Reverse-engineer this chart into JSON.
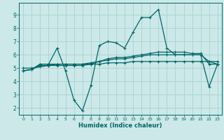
{
  "xlabel": "Humidex (Indice chaleur)",
  "bg_color": "#cce8e8",
  "grid_color": "#aed4d4",
  "line_color": "#006666",
  "xlim": [
    -0.5,
    23.5
  ],
  "ylim": [
    1.5,
    9.9
  ],
  "xticks": [
    0,
    1,
    2,
    3,
    4,
    5,
    6,
    7,
    8,
    9,
    10,
    11,
    12,
    13,
    14,
    15,
    16,
    17,
    18,
    19,
    20,
    21,
    22,
    23
  ],
  "yticks": [
    2,
    3,
    4,
    5,
    6,
    7,
    8,
    9
  ],
  "line1_x": [
    0,
    1,
    2,
    3,
    4,
    5,
    6,
    7,
    8,
    9,
    10,
    11,
    12,
    13,
    14,
    15,
    16,
    17,
    18,
    19,
    20,
    21,
    22,
    23
  ],
  "line1_y": [
    4.8,
    4.9,
    5.3,
    5.3,
    6.5,
    4.8,
    2.6,
    1.8,
    3.7,
    6.7,
    7.0,
    6.9,
    6.5,
    7.7,
    8.8,
    8.8,
    9.4,
    6.5,
    6.0,
    6.0,
    6.0,
    6.0,
    3.6,
    5.3
  ],
  "line2_x": [
    0,
    1,
    2,
    3,
    4,
    5,
    6,
    7,
    8,
    9,
    10,
    11,
    12,
    13,
    14,
    15,
    16,
    17,
    18,
    19,
    20,
    21,
    22,
    23
  ],
  "line2_y": [
    4.8,
    4.9,
    5.3,
    5.3,
    5.3,
    5.3,
    5.3,
    5.3,
    5.3,
    5.5,
    5.7,
    5.8,
    5.8,
    5.9,
    6.0,
    6.1,
    6.2,
    6.2,
    6.2,
    6.2,
    6.1,
    6.1,
    5.3,
    5.3
  ],
  "line3_x": [
    0,
    1,
    2,
    3,
    4,
    5,
    6,
    7,
    8,
    9,
    10,
    11,
    12,
    13,
    14,
    15,
    16,
    17,
    18,
    19,
    20,
    21,
    22,
    23
  ],
  "line3_y": [
    4.8,
    4.9,
    5.2,
    5.2,
    5.3,
    5.3,
    5.3,
    5.3,
    5.4,
    5.5,
    5.6,
    5.7,
    5.7,
    5.8,
    5.9,
    6.0,
    6.0,
    6.0,
    6.0,
    6.0,
    6.0,
    6.0,
    5.5,
    5.3
  ],
  "line4_x": [
    0,
    1,
    2,
    3,
    4,
    5,
    6,
    7,
    8,
    9,
    10,
    11,
    12,
    13,
    14,
    15,
    16,
    17,
    18,
    19,
    20,
    21,
    22,
    23
  ],
  "line4_y": [
    5.0,
    5.0,
    5.1,
    5.2,
    5.2,
    5.2,
    5.2,
    5.2,
    5.3,
    5.3,
    5.4,
    5.4,
    5.4,
    5.5,
    5.5,
    5.5,
    5.5,
    5.5,
    5.5,
    5.5,
    5.5,
    5.5,
    5.5,
    5.5
  ]
}
